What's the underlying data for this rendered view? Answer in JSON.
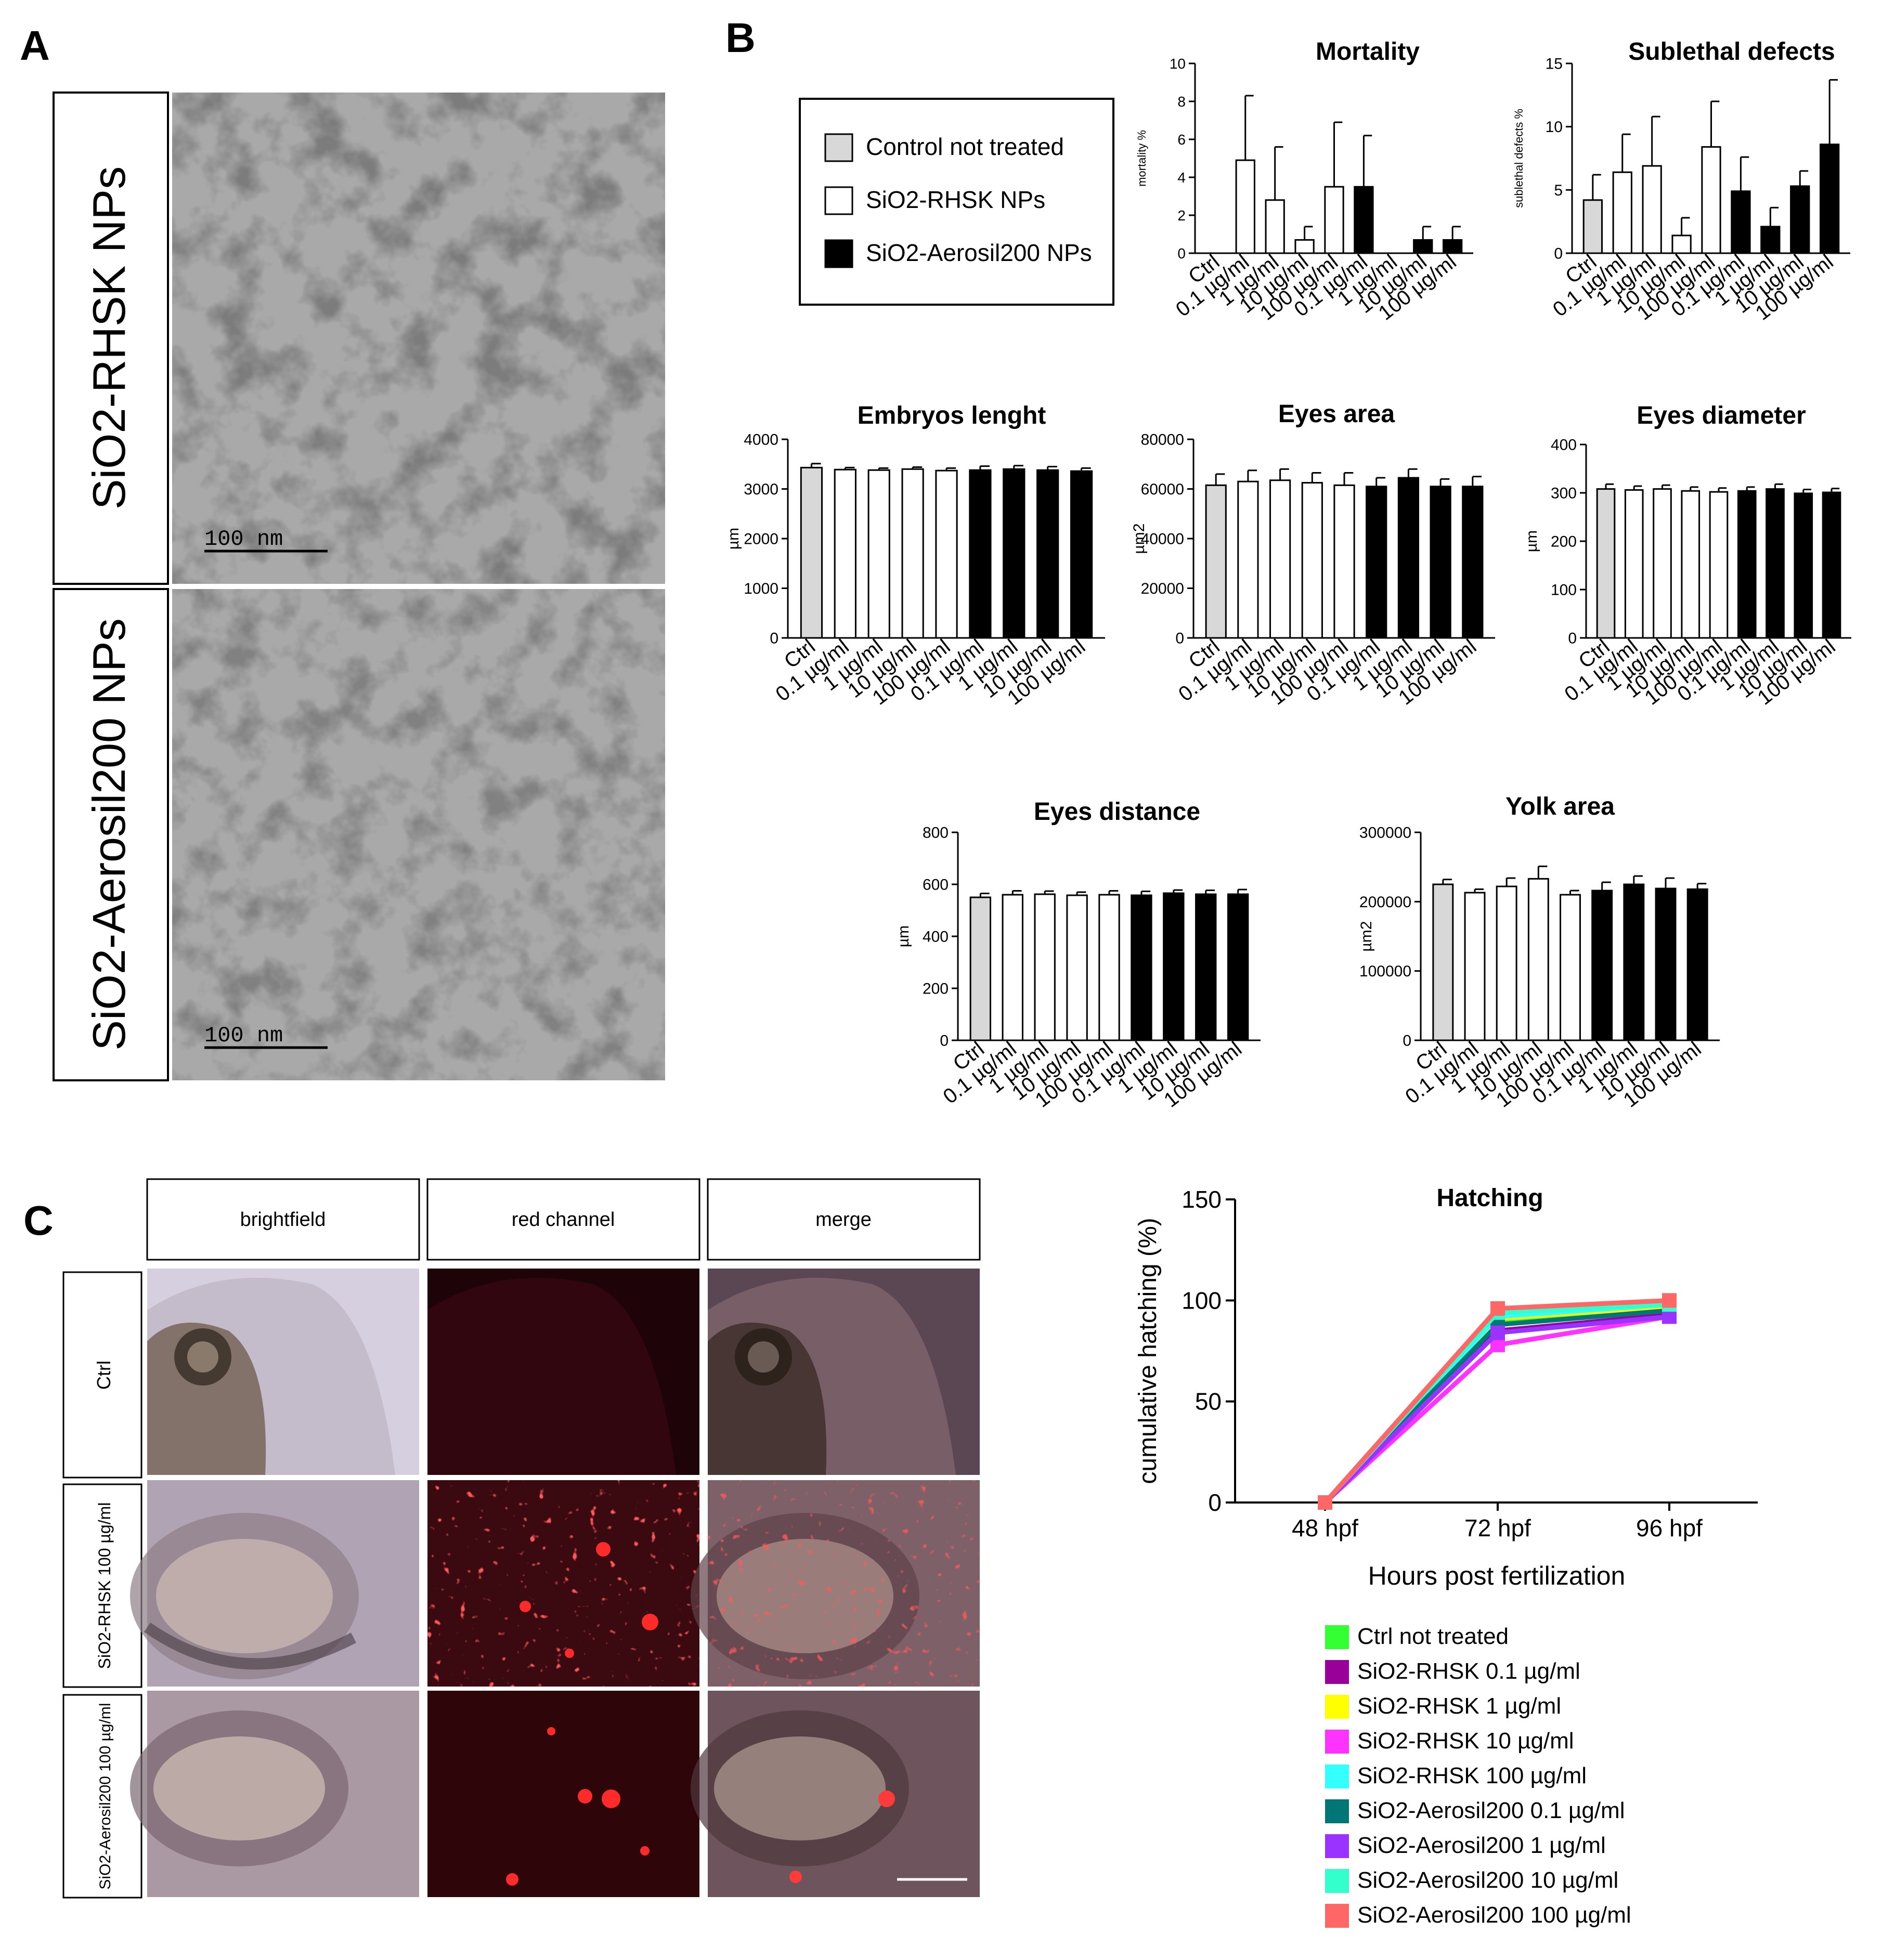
{
  "colors": {
    "control": "#d8d8d8",
    "rhsk": "#ffffff",
    "aerosil": "#000000"
  },
  "panel_a": {
    "letter": "A",
    "image_top_label": "SiO2-RHSK NPs",
    "image_bottom_label": "SiO2-Aerosil200 NPs",
    "scale_bar_label": "100 nm"
  },
  "panel_b": {
    "letter": "B",
    "legend": [
      {
        "label": "Control not treated",
        "color": "#d8d8d8"
      },
      {
        "label": "SiO2-RHSK NPs",
        "color": "#ffffff"
      },
      {
        "label": "SiO2-Aerosil200 NPs",
        "color": "#000000"
      }
    ]
  },
  "panel_c": {
    "letter": "C",
    "column_headers": [
      "brightfield",
      "red channel",
      "merge"
    ],
    "row_headers": [
      "Ctrl",
      "SiO2-RHSK 100 µg/ml",
      "SiO2-Aerosil200 100 µg/ml"
    ]
  },
  "chart_data": [
    {
      "type": "bar",
      "title": "Mortality",
      "ylabel": "mortality %",
      "ylim": [
        0,
        10
      ],
      "yticks": [
        0,
        2,
        4,
        6,
        8,
        10
      ],
      "categories": [
        "Ctrl",
        "0.1 µg/ml",
        "1 µg/ml",
        "10 µg/ml",
        "100 µg/ml",
        "0.1 µg/ml",
        "1 µg/ml",
        "10 µg/ml",
        "100 µg/ml"
      ],
      "groups": [
        "control",
        "rhsk",
        "rhsk",
        "rhsk",
        "rhsk",
        "aerosil",
        "aerosil",
        "aerosil",
        "aerosil"
      ],
      "values": [
        0,
        4.9,
        2.8,
        0.7,
        3.5,
        3.5,
        0,
        0.7,
        0.7
      ],
      "errors": [
        0,
        3.4,
        2.8,
        0.7,
        3.4,
        2.7,
        0,
        0.7,
        0.7
      ]
    },
    {
      "type": "bar",
      "title": "Sublethal defects",
      "ylabel": "sublethal defects %",
      "ylim": [
        0,
        15
      ],
      "yticks": [
        0,
        5,
        10,
        15
      ],
      "categories": [
        "Ctrl",
        "0.1 µg/ml",
        "1 µg/ml",
        "10 µg/ml",
        "100 µg/ml",
        "0.1 µg/ml",
        "1 µg/ml",
        "10 µg/ml",
        "100 µg/ml"
      ],
      "groups": [
        "control",
        "rhsk",
        "rhsk",
        "rhsk",
        "rhsk",
        "aerosil",
        "aerosil",
        "aerosil",
        "aerosil"
      ],
      "values": [
        4.2,
        6.4,
        6.9,
        1.4,
        8.4,
        4.9,
        2.1,
        5.3,
        8.6
      ],
      "errors": [
        2.0,
        3.0,
        3.9,
        1.4,
        3.6,
        2.7,
        1.5,
        1.2,
        5.1
      ]
    },
    {
      "type": "bar",
      "title": "Embryos lenght",
      "ylabel": "µm",
      "ylim": [
        0,
        4000
      ],
      "yticks": [
        0,
        1000,
        2000,
        3000,
        4000
      ],
      "categories": [
        "Ctrl",
        "0.1 µg/ml",
        "1 µg/ml",
        "10 µg/ml",
        "100 µg/ml",
        "0.1 µg/ml",
        "1 µg/ml",
        "10 µg/ml",
        "100 µg/ml"
      ],
      "groups": [
        "control",
        "rhsk",
        "rhsk",
        "rhsk",
        "rhsk",
        "aerosil",
        "aerosil",
        "aerosil",
        "aerosil"
      ],
      "values": [
        3430,
        3390,
        3380,
        3400,
        3370,
        3380,
        3400,
        3380,
        3360
      ],
      "errors": [
        80,
        40,
        40,
        40,
        50,
        80,
        70,
        70,
        60
      ]
    },
    {
      "type": "bar",
      "title": "Eyes area",
      "ylabel": "µm2",
      "ylim": [
        0,
        80000
      ],
      "yticks": [
        0,
        20000,
        40000,
        60000,
        80000
      ],
      "categories": [
        "Ctrl",
        "0.1 µg/ml",
        "1 µg/ml",
        "10 µg/ml",
        "100 µg/ml",
        "0.1 µg/ml",
        "1 µg/ml",
        "10 µg/ml",
        "100 µg/ml"
      ],
      "groups": [
        "control",
        "rhsk",
        "rhsk",
        "rhsk",
        "rhsk",
        "aerosil",
        "aerosil",
        "aerosil",
        "aerosil"
      ],
      "values": [
        61500,
        63000,
        63500,
        62500,
        61500,
        61000,
        64500,
        61000,
        61000
      ],
      "errors": [
        4500,
        4500,
        4500,
        4000,
        5000,
        3500,
        3500,
        3000,
        4000
      ]
    },
    {
      "type": "bar",
      "title": "Eyes diameter",
      "ylabel": "µm",
      "ylim": [
        0,
        400
      ],
      "yticks": [
        0,
        100,
        200,
        300,
        400
      ],
      "categories": [
        "Ctrl",
        "0.1 µg/ml",
        "1 µg/ml",
        "10 µg/ml",
        "100 µg/ml",
        "0.1 µg/ml",
        "1 µg/ml",
        "10 µg/ml",
        "100 µg/ml"
      ],
      "groups": [
        "control",
        "rhsk",
        "rhsk",
        "rhsk",
        "rhsk",
        "aerosil",
        "aerosil",
        "aerosil",
        "aerosil"
      ],
      "values": [
        308,
        306,
        308,
        304,
        302,
        304,
        308,
        299,
        301
      ],
      "errors": [
        10,
        8,
        8,
        8,
        8,
        8,
        10,
        8,
        8
      ]
    },
    {
      "type": "bar",
      "title": "Eyes distance",
      "ylabel": "µm",
      "ylim": [
        0,
        800
      ],
      "yticks": [
        0,
        200,
        400,
        600,
        800
      ],
      "categories": [
        "Ctrl",
        "0.1 µg/ml",
        "1 µg/ml",
        "10 µg/ml",
        "100 µg/ml",
        "0.1 µg/ml",
        "1 µg/ml",
        "10 µg/ml",
        "100 µg/ml"
      ],
      "groups": [
        "control",
        "rhsk",
        "rhsk",
        "rhsk",
        "rhsk",
        "aerosil",
        "aerosil",
        "aerosil",
        "aerosil"
      ],
      "values": [
        550,
        560,
        562,
        558,
        560,
        558,
        566,
        562,
        562
      ],
      "errors": [
        15,
        15,
        12,
        12,
        15,
        15,
        12,
        15,
        18
      ]
    },
    {
      "type": "bar",
      "title": "Yolk area",
      "ylabel": "µm2",
      "ylim": [
        0,
        300000
      ],
      "yticks": [
        0,
        100000,
        200000,
        300000
      ],
      "categories": [
        "Ctrl",
        "0.1 µg/ml",
        "1 µg/ml",
        "10 µg/ml",
        "100 µg/ml",
        "0.1 µg/ml",
        "1 µg/ml",
        "10 µg/ml",
        "100 µg/ml"
      ],
      "groups": [
        "control",
        "rhsk",
        "rhsk",
        "rhsk",
        "rhsk",
        "aerosil",
        "aerosil",
        "aerosil",
        "aerosil"
      ],
      "values": [
        225000,
        213000,
        222000,
        233000,
        210000,
        216000,
        225000,
        219000,
        218000
      ],
      "errors": [
        7000,
        5000,
        12000,
        18000,
        6000,
        12000,
        12000,
        15000,
        8000
      ]
    },
    {
      "type": "line",
      "title": "Hatching",
      "xlabel": "Hours post fertilization",
      "ylabel": "cumulative hatching (%)",
      "ylim": [
        0,
        150
      ],
      "yticks": [
        0,
        50,
        100,
        150
      ],
      "x": [
        "48 hpf",
        "72 hpf",
        "96 hpf"
      ],
      "series": [
        {
          "name": "Ctrl not treated",
          "color": "#33ff33",
          "values": [
            0,
            90,
            96
          ]
        },
        {
          "name": "SiO2-RHSK 0.1 µg/ml",
          "color": "#990099",
          "values": [
            0,
            85,
            93
          ]
        },
        {
          "name": "SiO2-RHSK 1 µg/ml",
          "color": "#ffff00",
          "values": [
            0,
            91,
            97
          ]
        },
        {
          "name": "SiO2-RHSK 10 µg/ml",
          "color": "#ff33ff",
          "values": [
            0,
            78,
            92
          ]
        },
        {
          "name": "SiO2-RHSK 100 µg/ml",
          "color": "#33ffff",
          "values": [
            0,
            92,
            98
          ]
        },
        {
          "name": "SiO2-Aerosil200 0.1 µg/ml",
          "color": "#007777",
          "values": [
            0,
            88,
            95
          ]
        },
        {
          "name": "SiO2-Aerosil200 1 µg/ml",
          "color": "#9933ff",
          "values": [
            0,
            84,
            92
          ]
        },
        {
          "name": "SiO2-Aerosil200 10 µg/ml",
          "color": "#33ffcc",
          "values": [
            0,
            94,
            98
          ]
        },
        {
          "name": "SiO2-Aerosil200 100 µg/ml",
          "color": "#ff6666",
          "values": [
            0,
            96,
            100
          ]
        }
      ]
    }
  ]
}
